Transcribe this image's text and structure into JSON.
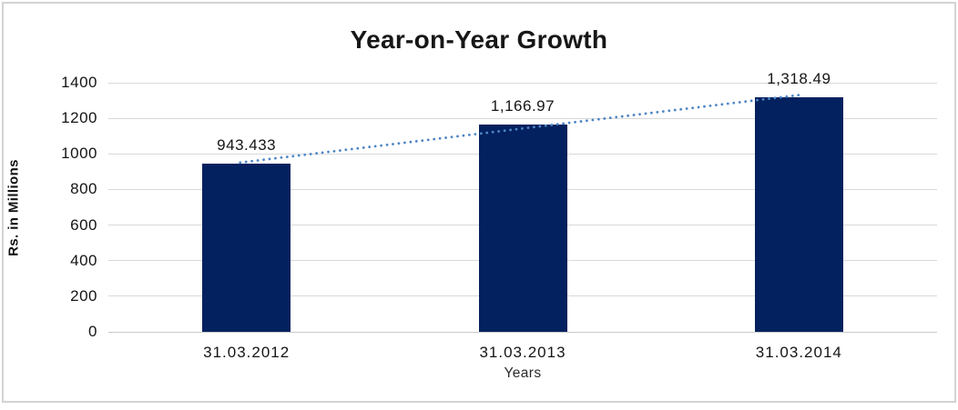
{
  "chart_data": {
    "type": "bar",
    "title": "Year-on-Year Growth",
    "categories": [
      "31.03.2012",
      "31.03.2013",
      "31.03.2014"
    ],
    "values": [
      943.433,
      1166.97,
      1318.49
    ],
    "data_labels": [
      "943.433",
      "1,166.97",
      "1,318.49"
    ],
    "xlabel": "Years",
    "ylabel": "Rs. in Millions",
    "ylim": [
      0,
      1400
    ],
    "yticks": [
      0,
      200,
      400,
      600,
      800,
      1000,
      1200,
      1400
    ],
    "grid": "horizontal",
    "legend": "none",
    "trendline": {
      "type": "linear",
      "style": "dotted"
    },
    "colors": {
      "bar": "#03215E",
      "trendline": "#4E86C6",
      "gridline": "#D9D9D9",
      "frame_border": "#D3D3D3",
      "text": "#151515"
    }
  }
}
